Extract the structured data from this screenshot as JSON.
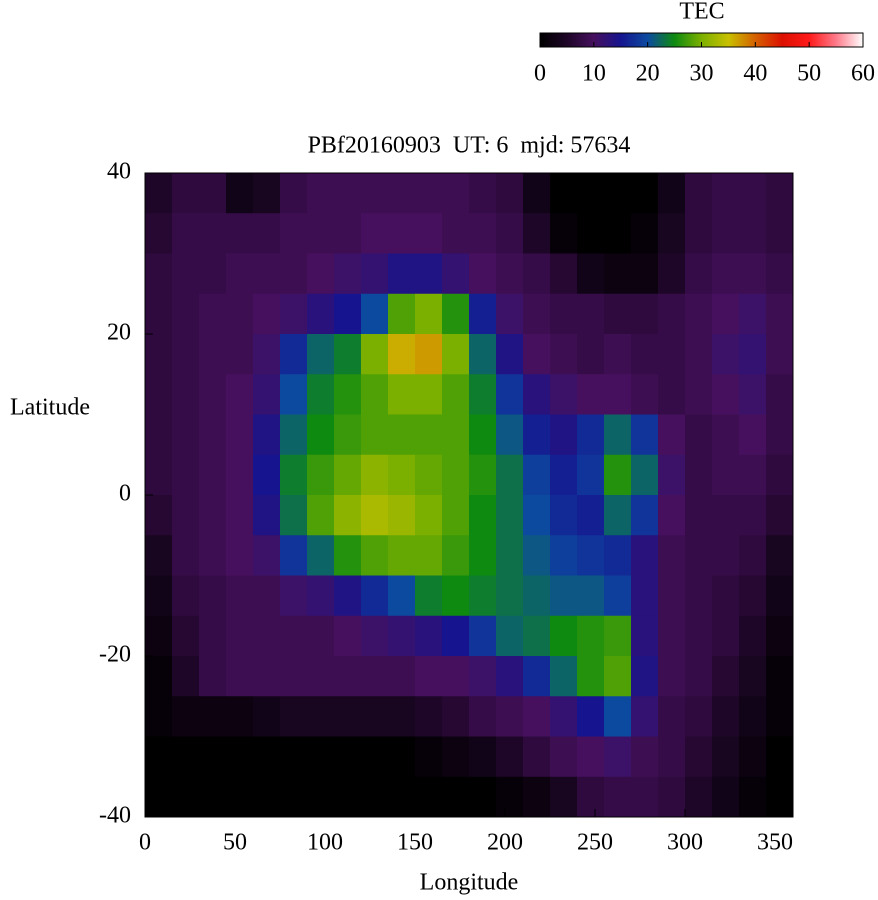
{
  "chart_data": {
    "type": "heatmap",
    "title": "PBf20160903  UT: 6  mjd: 57634",
    "xlabel": "Longitude",
    "ylabel": "Latitude",
    "colorbar_title": "TEC",
    "xlim": [
      0,
      360
    ],
    "ylim": [
      -40,
      40
    ],
    "xticks": [
      0,
      50,
      100,
      150,
      200,
      250,
      300,
      350
    ],
    "yticks": [
      -40,
      -20,
      0,
      20,
      40
    ],
    "zlim": [
      0,
      60
    ],
    "zticks": [
      0,
      10,
      20,
      30,
      40,
      50,
      60
    ],
    "colorscale": [
      [
        0,
        "#000000"
      ],
      [
        5,
        "#1e0628"
      ],
      [
        10,
        "#46105e"
      ],
      [
        15,
        "#16148e"
      ],
      [
        20,
        "#0c4aa0"
      ],
      [
        25,
        "#0e8a10"
      ],
      [
        30,
        "#7cb000"
      ],
      [
        35,
        "#c8c000"
      ],
      [
        40,
        "#d46000"
      ],
      [
        45,
        "#dc1000"
      ],
      [
        50,
        "#ff1a1a"
      ],
      [
        55,
        "#ff7a8a"
      ],
      [
        60,
        "#ffffff"
      ]
    ],
    "x": [
      7.5,
      22.5,
      37.5,
      52.5,
      67.5,
      82.5,
      97.5,
      112.5,
      127.5,
      142.5,
      157.5,
      172.5,
      187.5,
      202.5,
      217.5,
      232.5,
      247.5,
      262.5,
      277.5,
      292.5,
      307.5,
      322.5,
      337.5,
      352.5
    ],
    "y": [
      37.5,
      32.5,
      27.5,
      22.5,
      17.5,
      12.5,
      7.5,
      2.5,
      -2.5,
      -7.5,
      -12.5,
      -17.5,
      -22.5,
      -27.5,
      -32.5,
      -37.5
    ],
    "z": [
      [
        5,
        7,
        7,
        3,
        4,
        8,
        9,
        9,
        9,
        9,
        9,
        9,
        8,
        7,
        3,
        0,
        0,
        0,
        0,
        3,
        7,
        8,
        8,
        7
      ],
      [
        6,
        8,
        8,
        8,
        8,
        9,
        9,
        9,
        10,
        10,
        10,
        9,
        9,
        8,
        5,
        1,
        0,
        0,
        1,
        4,
        7,
        8,
        8,
        7
      ],
      [
        7,
        8,
        8,
        9,
        9,
        9,
        10,
        11,
        12,
        14,
        14,
        12,
        10,
        9,
        8,
        6,
        3,
        2,
        2,
        5,
        8,
        9,
        9,
        8
      ],
      [
        7,
        8,
        9,
        9,
        10,
        11,
        13,
        15,
        20,
        28,
        30,
        26,
        16,
        11,
        9,
        8,
        8,
        7,
        7,
        8,
        9,
        10,
        11,
        9
      ],
      [
        7,
        8,
        9,
        9,
        11,
        17,
        22,
        24,
        30,
        36,
        37,
        30,
        22,
        14,
        10,
        9,
        8,
        9,
        8,
        8,
        9,
        11,
        12,
        9
      ],
      [
        7,
        8,
        9,
        10,
        12,
        20,
        24,
        26,
        28,
        30,
        30,
        28,
        24,
        18,
        13,
        11,
        10,
        10,
        9,
        8,
        9,
        10,
        11,
        8
      ],
      [
        7,
        8,
        9,
        10,
        14,
        22,
        25,
        27,
        28,
        28,
        28,
        28,
        25,
        21,
        16,
        14,
        17,
        22,
        18,
        10,
        8,
        9,
        10,
        8
      ],
      [
        7,
        8,
        9,
        10,
        15,
        24,
        27,
        29,
        31,
        30,
        29,
        28,
        26,
        23,
        19,
        16,
        18,
        26,
        22,
        11,
        8,
        9,
        9,
        7
      ],
      [
        6,
        8,
        9,
        10,
        14,
        23,
        28,
        31,
        33,
        32,
        30,
        28,
        25,
        23,
        20,
        17,
        16,
        22,
        18,
        10,
        8,
        8,
        8,
        6
      ],
      [
        4,
        8,
        9,
        10,
        11,
        18,
        22,
        26,
        28,
        29,
        29,
        27,
        25,
        23,
        21,
        19,
        18,
        17,
        13,
        9,
        8,
        8,
        7,
        4
      ],
      [
        3,
        7,
        8,
        9,
        9,
        11,
        12,
        14,
        17,
        20,
        24,
        25,
        24,
        23,
        22,
        21,
        21,
        19,
        13,
        9,
        8,
        7,
        6,
        3
      ],
      [
        2,
        6,
        8,
        9,
        9,
        9,
        9,
        10,
        11,
        12,
        13,
        15,
        18,
        22,
        23,
        25,
        26,
        27,
        13,
        9,
        8,
        7,
        5,
        2
      ],
      [
        1,
        5,
        8,
        9,
        9,
        9,
        9,
        9,
        9,
        9,
        10,
        10,
        11,
        13,
        17,
        22,
        26,
        28,
        14,
        9,
        8,
        6,
        4,
        1
      ],
      [
        1,
        2,
        2,
        2,
        3,
        4,
        4,
        4,
        4,
        4,
        5,
        6,
        8,
        9,
        10,
        12,
        15,
        20,
        12,
        8,
        7,
        5,
        3,
        1
      ],
      [
        0,
        0,
        0,
        0,
        0,
        0,
        0,
        0,
        0,
        0,
        1,
        2,
        3,
        5,
        7,
        9,
        10,
        11,
        9,
        8,
        6,
        4,
        2,
        0
      ],
      [
        0,
        0,
        0,
        0,
        0,
        0,
        0,
        0,
        0,
        0,
        0,
        0,
        0,
        1,
        2,
        4,
        7,
        8,
        8,
        7,
        5,
        3,
        1,
        0
      ]
    ]
  }
}
